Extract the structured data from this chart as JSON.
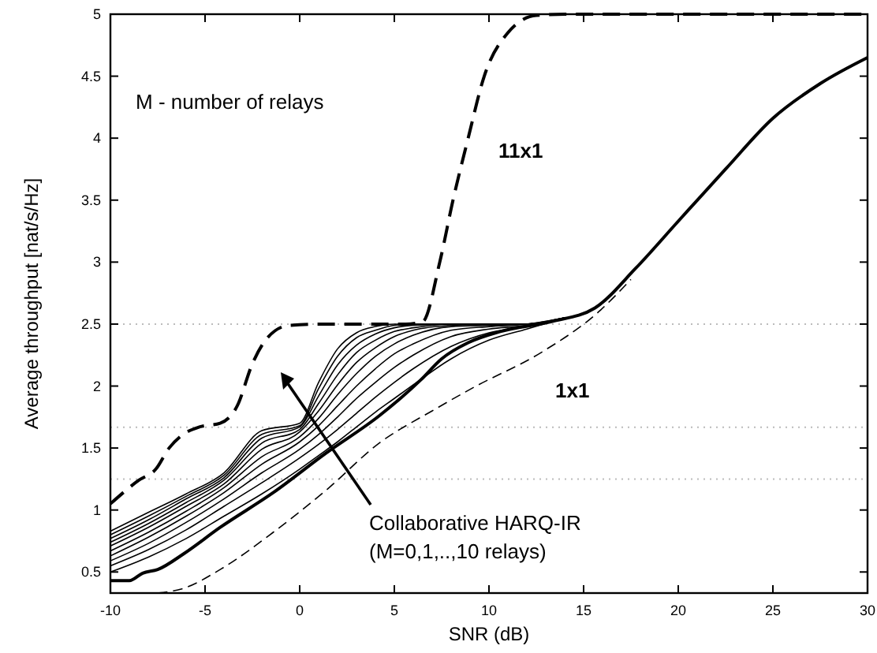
{
  "chart_data": {
    "type": "line",
    "xlabel": "SNR (dB)",
    "ylabel": "Average throughput [nat/s/Hz]",
    "xlim": [
      -10,
      30
    ],
    "ylim": [
      0.33,
      5
    ],
    "xticks": [
      -10,
      -5,
      0,
      5,
      10,
      15,
      20,
      25,
      30
    ],
    "yticks": [
      0.5,
      1,
      1.5,
      2,
      2.5,
      3,
      3.5,
      4,
      4.5,
      5
    ],
    "grid": false,
    "marker": "none",
    "ref_lines": [
      {
        "axis": "y",
        "value": 2.5,
        "label": null,
        "color": "#bbbbbb",
        "line_style": "dotted"
      },
      {
        "axis": "y",
        "value": 1.667,
        "label": null,
        "color": "#bbbbbb",
        "line_style": "dotted"
      },
      {
        "axis": "y",
        "value": 1.25,
        "label": null,
        "color": "#bbbbbb",
        "line_style": "dotted"
      }
    ],
    "annotations": [
      "M - number of relays",
      "Collaborative HARQ-IR\n(M=0,1,..,10 relays)"
    ],
    "series": [
      {
        "name": "11x1",
        "color": "#000000",
        "line_style": "dashed",
        "x": [
          -10,
          -8.5,
          -7.6,
          -6.9,
          -6.25,
          -5.3,
          -4.2,
          -3.3,
          -2.5,
          -1.7,
          -0.55,
          1.4,
          5.6,
          6.5,
          7.4,
          8.1,
          8.9,
          9.75,
          11,
          12.5,
          14,
          30
        ],
        "values": [
          1.05,
          1.24,
          1.33,
          1.5,
          1.6,
          1.67,
          1.7,
          1.84,
          2.18,
          2.39,
          2.49,
          2.5,
          2.5,
          2.52,
          3,
          3.5,
          4,
          4.5,
          4.85,
          4.99,
          5,
          5
        ]
      },
      {
        "name": "1x1",
        "color": "#000000",
        "line_style": "solid",
        "x": [
          -10,
          -9,
          -8.3,
          -7.5,
          -6.1,
          -4.2,
          -1.4,
          1.4,
          4.2,
          6.4,
          7.5,
          8.9,
          10.6,
          13.3,
          15.6,
          17.75,
          20,
          22.5,
          25,
          27.5,
          30
        ],
        "values": [
          0.43,
          0.43,
          0.49,
          0.52,
          0.65,
          0.86,
          1.14,
          1.46,
          1.76,
          2.05,
          2.22,
          2.35,
          2.44,
          2.52,
          2.63,
          2.95,
          3.33,
          3.75,
          4.16,
          4.44,
          4.65
        ]
      },
      {
        "color": "#000000",
        "line_style": "dashed",
        "x": [
          -7.5,
          -6.1,
          -4.2,
          -1.4,
          1.4,
          4.2,
          7,
          9.2,
          12.75,
          15.8,
          17.5
        ],
        "values": [
          0.33,
          0.37,
          0.52,
          0.82,
          1.16,
          1.54,
          1.8,
          1.99,
          2.27,
          2.6,
          2.86
        ]
      },
      {
        "color": "#000000",
        "line_style": "solid",
        "x": [
          -10,
          -8,
          -6,
          -4,
          -2,
          0,
          1,
          2,
          3,
          4,
          5,
          6,
          8,
          10,
          12,
          14
        ],
        "values": [
          0.5,
          0.62,
          0.77,
          0.95,
          1.13,
          1.33,
          1.44,
          1.55,
          1.67,
          1.79,
          1.9,
          2.01,
          2.22,
          2.37,
          2.46,
          2.55
        ]
      },
      {
        "color": "#000000",
        "line_style": "solid",
        "x": [
          -10,
          -8,
          -6,
          -4,
          -2,
          0,
          1,
          2,
          3,
          4,
          5,
          6,
          8,
          10,
          12,
          14
        ],
        "values": [
          0.55,
          0.68,
          0.84,
          1.03,
          1.22,
          1.42,
          1.53,
          1.65,
          1.78,
          1.91,
          2.03,
          2.14,
          2.32,
          2.43,
          2.48,
          2.55
        ]
      },
      {
        "color": "#000000",
        "line_style": "solid",
        "x": [
          -10,
          -8,
          -6,
          -4,
          -2,
          0,
          1,
          2,
          3,
          4,
          5,
          6,
          8,
          10,
          12,
          14
        ],
        "values": [
          0.59,
          0.73,
          0.9,
          1.09,
          1.3,
          1.49,
          1.61,
          1.75,
          1.9,
          2.03,
          2.15,
          2.25,
          2.4,
          2.46,
          2.49,
          2.55
        ]
      },
      {
        "color": "#000000",
        "line_style": "solid",
        "x": [
          -10,
          -8,
          -6,
          -4,
          -2,
          0,
          1,
          2,
          3,
          4,
          5,
          6,
          8,
          10,
          12,
          14
        ],
        "values": [
          0.63,
          0.78,
          0.95,
          1.14,
          1.37,
          1.55,
          1.68,
          1.84,
          2,
          2.14,
          2.26,
          2.34,
          2.45,
          2.48,
          2.5,
          2.55
        ]
      },
      {
        "color": "#000000",
        "line_style": "solid",
        "x": [
          -10,
          -8,
          -6,
          -4,
          -2,
          0,
          1,
          2,
          3,
          4,
          5,
          6,
          8,
          10,
          12,
          14
        ],
        "values": [
          0.67,
          0.82,
          0.99,
          1.18,
          1.43,
          1.59,
          1.74,
          1.93,
          2.1,
          2.24,
          2.34,
          2.41,
          2.48,
          2.49,
          2.5,
          2.55
        ]
      },
      {
        "color": "#000000",
        "line_style": "solid",
        "x": [
          -10,
          -8,
          -6,
          -4,
          -2,
          0,
          1,
          2,
          3,
          4,
          5,
          6,
          8,
          10,
          12,
          14
        ],
        "values": [
          0.71,
          0.86,
          1.03,
          1.21,
          1.49,
          1.63,
          1.8,
          2.01,
          2.19,
          2.31,
          2.4,
          2.45,
          2.49,
          2.5,
          2.5,
          2.55
        ]
      },
      {
        "color": "#000000",
        "line_style": "solid",
        "x": [
          -10,
          -8,
          -6,
          -4,
          -2,
          0,
          1,
          2,
          3,
          4,
          5,
          6,
          8,
          10,
          12,
          14
        ],
        "values": [
          0.74,
          0.89,
          1.06,
          1.24,
          1.54,
          1.65,
          1.86,
          2.09,
          2.27,
          2.37,
          2.44,
          2.47,
          2.5,
          2.5,
          2.5,
          2.55
        ]
      },
      {
        "color": "#000000",
        "line_style": "solid",
        "x": [
          -10,
          -8,
          -6,
          -4,
          -2,
          0,
          1,
          2,
          3,
          4,
          5,
          6,
          8,
          10,
          12,
          14
        ],
        "values": [
          0.77,
          0.92,
          1.09,
          1.26,
          1.58,
          1.67,
          1.92,
          2.17,
          2.33,
          2.42,
          2.47,
          2.49,
          2.5,
          2.5,
          2.5,
          2.55
        ]
      },
      {
        "color": "#000000",
        "line_style": "solid",
        "x": [
          -10,
          -8,
          -6,
          -4,
          -2,
          0,
          1,
          2,
          3,
          4,
          5,
          6,
          8,
          10,
          12,
          14
        ],
        "values": [
          0.8,
          0.95,
          1.11,
          1.28,
          1.61,
          1.68,
          1.98,
          2.24,
          2.39,
          2.45,
          2.49,
          2.5,
          2.5,
          2.5,
          2.5,
          2.55
        ]
      },
      {
        "color": "#000000",
        "line_style": "solid",
        "x": [
          -10,
          -8,
          -6,
          -4,
          -2,
          0,
          1,
          2,
          3,
          4,
          5,
          6,
          8,
          10,
          12,
          14
        ],
        "values": [
          0.83,
          0.98,
          1.13,
          1.3,
          1.64,
          1.7,
          2.03,
          2.3,
          2.43,
          2.48,
          2.5,
          2.5,
          2.5,
          2.5,
          2.5,
          2.55
        ]
      }
    ]
  }
}
